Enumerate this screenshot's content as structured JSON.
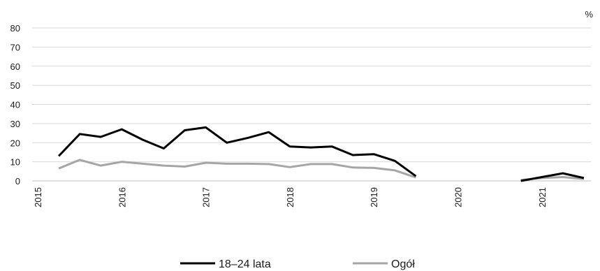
{
  "chart_data": {
    "type": "line",
    "unit_label": "%",
    "ylim": [
      0,
      80
    ],
    "yticks": [
      "0",
      "10",
      "20",
      "30",
      "40",
      "50",
      "60",
      "70",
      "80"
    ],
    "xlim": [
      2015,
      2021.75
    ],
    "xticks": [
      "2015",
      "2016",
      "2017",
      "2018",
      "2019",
      "2020",
      "2021"
    ],
    "grid": true,
    "legend_position": "bottom",
    "series": [
      {
        "name": "18–24 lata",
        "color": "#000000",
        "segments": [
          [
            [
              2015.25,
              13.0
            ],
            [
              2015.5,
              24.5
            ],
            [
              2015.75,
              23.0
            ],
            [
              2016.0,
              27.0
            ],
            [
              2016.25,
              21.5
            ],
            [
              2016.5,
              17.0
            ],
            [
              2016.75,
              26.5
            ],
            [
              2017.0,
              28.0
            ],
            [
              2017.25,
              20.0
            ],
            [
              2017.5,
              22.5
            ],
            [
              2017.75,
              25.5
            ],
            [
              2018.0,
              18.0
            ],
            [
              2018.25,
              17.5
            ],
            [
              2018.5,
              18.0
            ],
            [
              2018.75,
              13.5
            ],
            [
              2019.0,
              14.0
            ],
            [
              2019.25,
              10.5
            ],
            [
              2019.5,
              2.5
            ]
          ],
          [
            [
              2020.75,
              0.0
            ],
            [
              2021.0,
              2.0
            ],
            [
              2021.25,
              4.0
            ],
            [
              2021.5,
              1.5
            ]
          ]
        ]
      },
      {
        "name": "Ogół",
        "color": "#a6a6a6",
        "segments": [
          [
            [
              2015.25,
              6.5
            ],
            [
              2015.5,
              11.0
            ],
            [
              2015.75,
              8.0
            ],
            [
              2016.0,
              10.0
            ],
            [
              2016.25,
              9.0
            ],
            [
              2016.5,
              8.0
            ],
            [
              2016.75,
              7.5
            ],
            [
              2017.0,
              9.5
            ],
            [
              2017.25,
              9.0
            ],
            [
              2017.5,
              9.0
            ],
            [
              2017.75,
              8.8
            ],
            [
              2018.0,
              7.2
            ],
            [
              2018.25,
              8.8
            ],
            [
              2018.5,
              8.8
            ],
            [
              2018.75,
              7.0
            ],
            [
              2019.0,
              6.8
            ],
            [
              2019.25,
              5.5
            ],
            [
              2019.5,
              1.8
            ]
          ],
          [
            [
              2020.75,
              0.5
            ],
            [
              2021.0,
              1.5
            ],
            [
              2021.25,
              2.0
            ],
            [
              2021.5,
              1.0
            ]
          ]
        ]
      }
    ]
  }
}
